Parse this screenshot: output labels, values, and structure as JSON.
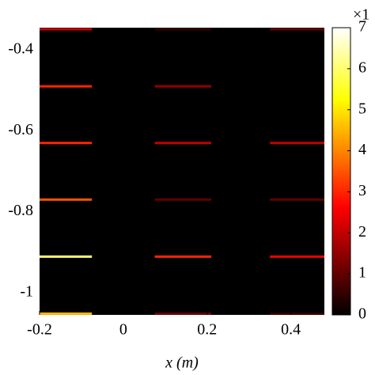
{
  "chart_data": {
    "type": "heatmap",
    "xlabel": "x (m)",
    "xlim": [
      -0.2,
      0.48
    ],
    "xticks": [
      -0.2,
      0,
      0.2,
      0.4
    ],
    "ylim": [
      -1.055,
      -0.345
    ],
    "yticks": [
      -1,
      -0.8,
      -0.6,
      -0.4
    ],
    "clim": [
      0,
      7
    ],
    "cticks": [
      0,
      1,
      2,
      3,
      4,
      5,
      6,
      7
    ],
    "colorbar_label": "×1",
    "background": "#000000",
    "streaks": [
      {
        "y": -0.349,
        "x": [
          -0.2,
          -0.075
        ],
        "value": 2
      },
      {
        "y": -0.349,
        "x": [
          0.075,
          0.21
        ],
        "value": 0.5
      },
      {
        "y": -0.349,
        "x": [
          0.35,
          0.48
        ],
        "value": 1
      },
      {
        "y": -0.49,
        "x": [
          -0.2,
          -0.075
        ],
        "value": 3
      },
      {
        "y": -0.49,
        "x": [
          0.075,
          0.21
        ],
        "value": 1.5
      },
      {
        "y": -0.63,
        "x": [
          -0.2,
          -0.075
        ],
        "value": 3
      },
      {
        "y": -0.63,
        "x": [
          0.075,
          0.21
        ],
        "value": 2
      },
      {
        "y": -0.63,
        "x": [
          0.35,
          0.48
        ],
        "value": 2
      },
      {
        "y": -0.77,
        "x": [
          -0.2,
          -0.075
        ],
        "value": 3.5
      },
      {
        "y": -0.77,
        "x": [
          0.075,
          0.21
        ],
        "value": 1
      },
      {
        "y": -0.77,
        "x": [
          0.35,
          0.48
        ],
        "value": 1
      },
      {
        "y": -0.911,
        "x": [
          -0.2,
          -0.075
        ],
        "value": 6
      },
      {
        "y": -0.911,
        "x": [
          0.075,
          0.21
        ],
        "value": 3
      },
      {
        "y": -0.911,
        "x": [
          0.35,
          0.48
        ],
        "value": 2.5
      },
      {
        "y": -1.052,
        "x": [
          -0.2,
          -0.075
        ],
        "value": 4.5
      },
      {
        "y": -1.052,
        "x": [
          0.075,
          0.21
        ],
        "value": 1
      },
      {
        "y": -1.052,
        "x": [
          0.35,
          0.48
        ],
        "value": 0.5
      }
    ]
  }
}
